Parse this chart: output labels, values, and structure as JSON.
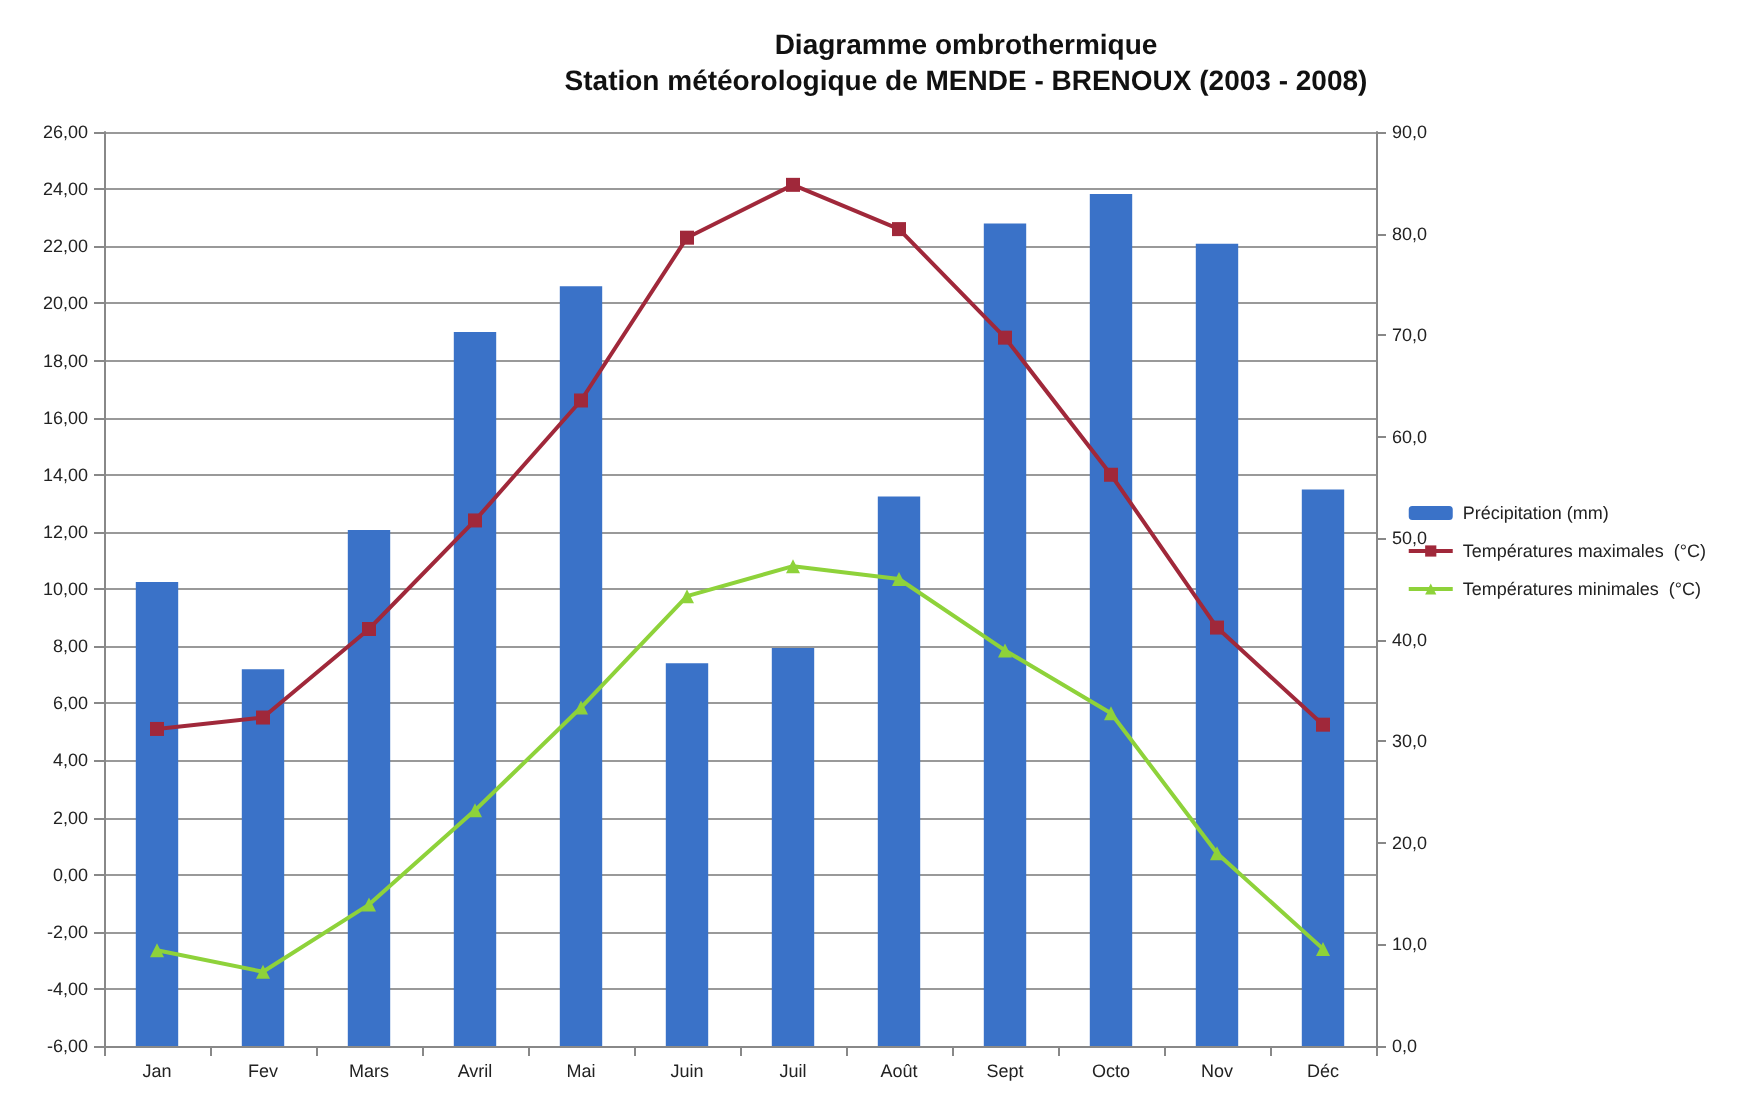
{
  "chart_data": {
    "type": "bar",
    "title": "Diagramme ombrothermique",
    "subtitle": "Station météorologique de MENDE - BRENOUX (2003 - 2008)",
    "categories": [
      "Jan",
      "Fev",
      "Mars",
      "Avril",
      "Mai",
      "Juin",
      "Juil",
      "Août",
      "Sept",
      "Octo",
      "Nov",
      "Déc"
    ],
    "series": [
      {
        "name": "Précipitation (mm)",
        "axis": "y2",
        "color": "#3a72c8",
        "values": [
          45.7,
          37.1,
          50.8,
          70.3,
          74.8,
          37.7,
          39.2,
          54.1,
          81.0,
          83.9,
          79.0,
          54.8
        ]
      },
      {
        "name": "Températures maximales  (°C)",
        "type": "line",
        "color": "#a0283a",
        "marker": "square",
        "values": [
          5.1,
          5.5,
          8.6,
          12.4,
          16.6,
          22.3,
          24.15,
          22.6,
          18.8,
          14.0,
          8.65,
          5.25
        ]
      },
      {
        "name": "Températures minimales  (°C)",
        "type": "line",
        "color": "#8ed23a",
        "marker": "triangle",
        "values": [
          -2.65,
          -3.4,
          -1.05,
          2.25,
          5.85,
          9.75,
          10.8,
          10.35,
          7.85,
          5.65,
          0.75,
          -2.6
        ]
      }
    ],
    "ylim": [
      -6,
      26
    ],
    "yticks": [
      {
        "value": -6,
        "label": "-6,00"
      },
      {
        "value": -4,
        "label": "-4,00"
      },
      {
        "value": -2,
        "label": "-2,00"
      },
      {
        "value": 0,
        "label": "0,00"
      },
      {
        "value": 2,
        "label": "2,00"
      },
      {
        "value": 4,
        "label": "4,00"
      },
      {
        "value": 6,
        "label": "6,00"
      },
      {
        "value": 8,
        "label": "8,00"
      },
      {
        "value": 10,
        "label": "10,00"
      },
      {
        "value": 12,
        "label": "12,00"
      },
      {
        "value": 14,
        "label": "14,00"
      },
      {
        "value": 16,
        "label": "16,00"
      },
      {
        "value": 18,
        "label": "18,00"
      },
      {
        "value": 20,
        "label": "20,00"
      },
      {
        "value": 22,
        "label": "22,00"
      },
      {
        "value": 24,
        "label": "24,00"
      },
      {
        "value": 26,
        "label": "26,00"
      }
    ],
    "y2lim": [
      0,
      90
    ],
    "y2ticks": [
      {
        "value": 0,
        "label": "0,0"
      },
      {
        "value": 10,
        "label": "10,0"
      },
      {
        "value": 20,
        "label": "20,0"
      },
      {
        "value": 30,
        "label": "30,0"
      },
      {
        "value": 40,
        "label": "40,0"
      },
      {
        "value": 50,
        "label": "50,0"
      },
      {
        "value": 60,
        "label": "60,0"
      },
      {
        "value": 70,
        "label": "70,0"
      },
      {
        "value": 80,
        "label": "80,0"
      },
      {
        "value": 90,
        "label": "90,0"
      }
    ],
    "grid": "y",
    "legend": "right",
    "line_style": "solid"
  }
}
